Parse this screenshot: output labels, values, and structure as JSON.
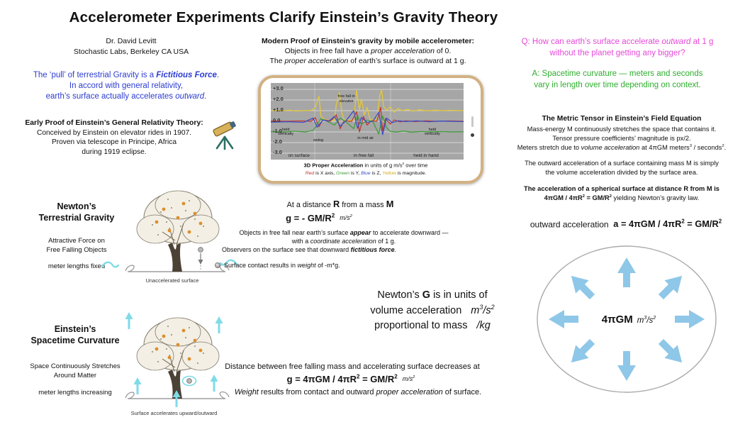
{
  "colors": {
    "intro_blue": "#2c3cd0",
    "question_magenta": "#e649d8",
    "answer_green": "#2fae2f",
    "cyan_arrow": "#7fdbe8",
    "circle_arrow_blue": "#8ec7e8",
    "phone_border": "#d2b183",
    "trace_red": "#c03a2e",
    "trace_green": "#3f9e3a",
    "trace_blue": "#3a50c8",
    "trace_yellow": "#e3c93a",
    "legend_yellow": "#cfae1e"
  },
  "sym": {
    "sup2": "2",
    "sup3": "3"
  },
  "title": "Accelerometer Experiments Clarify Einstein’s Gravity Theory",
  "author": {
    "name": "Dr. David Levitt",
    "affiliation": "Stochastic Labs, Berkeley CA USA"
  },
  "intro": {
    "l1a": "The ‘pull’ of terrestrial Gravity is a ",
    "l1b": "Fictitious Force",
    "l1c": ".",
    "l2": "In accord with general relativity,",
    "l3a": "earth’s surface actually accelerates ",
    "l3b": "outward",
    "l3c": "."
  },
  "early_proof": {
    "heading": "Early Proof of Einstein’s General Relativity Theory:",
    "l1": "Conceived by Einstein on elevator rides in 1907.",
    "l2": "Proven via telescope in Principe, Africa",
    "l3": "during 1919 eclipse."
  },
  "modern_proof": {
    "heading": "Modern Proof of Einstein’s gravity by mobile accelerometer:",
    "l1a": "Objects in free fall have a ",
    "l1b": "proper acceleration",
    "l1c": " of 0.",
    "l2a": "The ",
    "l2b": "proper acceleration",
    "l2c": " of earth’s surface is outward at 1 g."
  },
  "question": {
    "l1a": "Q: How can earth’s surface accelerate ",
    "l1b": "outward",
    "l1c": " at 1 g",
    "l2": "without the planet getting any bigger?"
  },
  "answer": {
    "l1": "A: Spacetime curvature — meters and seconds",
    "l2": "vary in length over time depending on context."
  },
  "metric_tensor": {
    "heading": "The Metric Tensor in Einstein’s Field Equation",
    "l1": "Mass-energy M continuously stretches the space that contains it.",
    "l2": "Tensor pressure coefficients’ magnitude is px/2.",
    "l3a": "Meters stretch due to ",
    "l3b": "volume acceleration",
    "l3c": " at 4πGM meters",
    "l3d": " / seconds",
    "l3e": ".",
    "l4": "The outward acceleration of a surface containing mass M is simply",
    "l5": "the volume acceleration divided by the surface area.",
    "l6": "The acceleration of a spherical surface at distance R from M is",
    "l7a": "4πGM / 4πR",
    "l7b": " =  GM/R",
    "l7c": " yielding Newton’s gravity law."
  },
  "newton": {
    "heading1": "Newton’s",
    "heading2": "Terrestrial Gravity",
    "sub1a": "Attractive Force on",
    "sub1b": "Free Falling Objects",
    "sub2": "meter lengths fixed",
    "ground_caption": "Unaccelerated surface"
  },
  "distance_block": {
    "l1a": "At a distance ",
    "l1b": "R",
    "l1c": " from a mass ",
    "l1d": "M",
    "f1a": "g = - GM/R",
    "f1_units": "m/s",
    "l2a": "Objects in free fall near earth’s surface ",
    "l2b": "appear",
    "l2c": " to accelerate downward —",
    "l3a": "with a ",
    "l3b": "coordinate acceleration",
    "l3c": " of 1 g.",
    "l4a": "Observers on the surface see that downward ",
    "l4b": "fictitious force",
    "l4c": ".",
    "l5a": "Surface contact results in ",
    "l5b": "weight",
    "l5c": " of  -m*g."
  },
  "outward": {
    "label": "outward acceleration",
    "f_a": "a = 4πGM / 4πR",
    "f_b": " = GM/R",
    "center_bold": "4πGM",
    "center_units_a": "m",
    "center_units_b": "/s"
  },
  "newtons_g": {
    "l1a": "Newton’s ",
    "l1b": "G",
    "l1c": " is in units of",
    "l2a": "volume acceleration",
    "l2b": "m",
    "l2c": "/s",
    "l3a": "proportional to mass",
    "l3b": "/kg"
  },
  "einstein": {
    "heading1": "Einstein’s",
    "heading2": "Spacetime Curvature",
    "sub1a": "Space Continuously Stretches",
    "sub1b": "Around Matter",
    "sub2": "meter lengths increasing",
    "ground_caption": "Surface accelerates upward/outward"
  },
  "bottom": {
    "l1": "Distance between free falling mass and accelerating surface decreases at",
    "f1a": "g = 4πGM / 4πR",
    "f1b": " =  GM/R",
    "f1_units": "m/s",
    "l2a": "Weight",
    "l2b": " results from contact and outward ",
    "l2c": "proper acceleration",
    "l2d": " of surface."
  },
  "phone": {
    "chart": {
      "type": "line",
      "y_range": [
        -3,
        3
      ],
      "y_ticks": [
        "+3.0",
        "+2.0",
        "+1.0",
        "0.0",
        "-1.0",
        "-2.0",
        "-3.0"
      ],
      "phases": [
        "on surface",
        "in free fall",
        "held in hand"
      ],
      "ann_free_fall": "free fall in elevator",
      "ann_held_left": "held vertically",
      "ann_swing": "swing",
      "ann_mid_air": "in mid air",
      "ann_held_right": "held vertically",
      "caption_bold": "3D Proper Acceleration",
      "caption_mid": " in units of g m/s",
      "caption_end": " over time",
      "legend": {
        "red": "Red",
        "s1": " is X axis, ",
        "green": "Green",
        "s2": " is Y, ",
        "blue": "Blue",
        "s3": " is Z, ",
        "yellow": "Yellow",
        "s4": " is magnitude."
      },
      "traces": [
        {
          "name": "magnitude",
          "color": "#e3c93a",
          "points": [
            [
              0,
              1.02
            ],
            [
              6,
              1.0
            ],
            [
              10,
              1.04
            ],
            [
              13,
              0.97
            ],
            [
              17,
              1.0
            ],
            [
              21,
              1.02
            ],
            [
              23,
              1.25
            ],
            [
              25,
              2.35
            ],
            [
              26,
              0.5
            ],
            [
              28,
              0.12
            ],
            [
              33,
              0.07
            ],
            [
              34,
              1.6
            ],
            [
              35.5,
              2.7
            ],
            [
              37,
              0.7
            ],
            [
              38,
              0.12
            ],
            [
              43,
              0.08
            ],
            [
              44.5,
              2.9
            ],
            [
              46,
              1.1
            ],
            [
              47,
              2.1
            ],
            [
              48.5,
              0.6
            ],
            [
              50,
              1.3
            ],
            [
              51.5,
              0.15
            ],
            [
              55,
              0.1
            ],
            [
              56.5,
              2.4
            ],
            [
              57.5,
              3.0
            ],
            [
              58.5,
              1.4
            ],
            [
              60,
              1.05
            ],
            [
              62,
              1.35
            ],
            [
              64,
              0.85
            ],
            [
              66,
              1.2
            ],
            [
              68,
              1.0
            ],
            [
              71,
              1.12
            ],
            [
              74,
              0.95
            ],
            [
              77,
              1.08
            ],
            [
              81,
              0.98
            ],
            [
              85,
              1.05
            ],
            [
              89,
              1.0
            ],
            [
              93,
              1.03
            ],
            [
              100,
              1.0
            ]
          ]
        },
        {
          "name": "x-axis",
          "color": "#c03a2e",
          "points": [
            [
              0,
              0.02
            ],
            [
              8,
              0.0
            ],
            [
              16,
              0.03
            ],
            [
              21,
              0.0
            ],
            [
              23,
              0.35
            ],
            [
              25,
              -0.5
            ],
            [
              27,
              0.15
            ],
            [
              31,
              0.02
            ],
            [
              34,
              0.6
            ],
            [
              36,
              -0.7
            ],
            [
              38,
              0.05
            ],
            [
              42,
              0.0
            ],
            [
              44.5,
              0.9
            ],
            [
              46,
              -1.0
            ],
            [
              48,
              0.45
            ],
            [
              50,
              -0.35
            ],
            [
              52,
              0.05
            ],
            [
              55,
              0.0
            ],
            [
              57,
              1.3
            ],
            [
              58,
              -0.9
            ],
            [
              59.5,
              0.25
            ],
            [
              62,
              -0.25
            ],
            [
              64,
              0.12
            ],
            [
              67,
              -0.05
            ],
            [
              70,
              0.04
            ],
            [
              75,
              -0.03
            ],
            [
              80,
              0.04
            ],
            [
              86,
              0.0
            ],
            [
              92,
              0.03
            ],
            [
              100,
              0.0
            ]
          ]
        },
        {
          "name": "y-axis",
          "color": "#3f9e3a",
          "points": [
            [
              0,
              -0.98
            ],
            [
              7,
              -1.0
            ],
            [
              12,
              -0.93
            ],
            [
              18,
              -1.0
            ],
            [
              22,
              -0.85
            ],
            [
              24,
              -0.3
            ],
            [
              26,
              0.25
            ],
            [
              29,
              0.02
            ],
            [
              33,
              -0.35
            ],
            [
              36,
              0.3
            ],
            [
              39,
              -0.05
            ],
            [
              43,
              -0.7
            ],
            [
              45,
              0.55
            ],
            [
              47,
              -0.3
            ],
            [
              50,
              0.1
            ],
            [
              53,
              -0.05
            ],
            [
              56,
              -1.2
            ],
            [
              58,
              0.5
            ],
            [
              60,
              -0.6
            ],
            [
              62,
              -0.95
            ],
            [
              65,
              -1.0
            ],
            [
              69,
              -0.92
            ],
            [
              73,
              -1.02
            ],
            [
              78,
              -0.96
            ],
            [
              83,
              -1.0
            ],
            [
              88,
              -0.97
            ],
            [
              94,
              -1.0
            ],
            [
              100,
              -0.98
            ]
          ]
        },
        {
          "name": "z-axis",
          "color": "#3a50c8",
          "points": [
            [
              0,
              -0.08
            ],
            [
              9,
              -0.04
            ],
            [
              17,
              -0.1
            ],
            [
              22,
              0.3
            ],
            [
              24,
              -0.55
            ],
            [
              27,
              0.1
            ],
            [
              30,
              0.0
            ],
            [
              33,
              0.45
            ],
            [
              36,
              -0.45
            ],
            [
              39,
              0.05
            ],
            [
              43,
              1.0
            ],
            [
              45,
              -0.65
            ],
            [
              47,
              0.35
            ],
            [
              50,
              -0.1
            ],
            [
              53,
              0.02
            ],
            [
              56,
              0.85
            ],
            [
              58,
              -1.25
            ],
            [
              60,
              0.3
            ],
            [
              63,
              -0.12
            ],
            [
              66,
              0.05
            ],
            [
              70,
              -0.02
            ],
            [
              76,
              0.04
            ],
            [
              82,
              -0.04
            ],
            [
              88,
              0.02
            ],
            [
              100,
              -0.03
            ]
          ]
        }
      ]
    }
  }
}
